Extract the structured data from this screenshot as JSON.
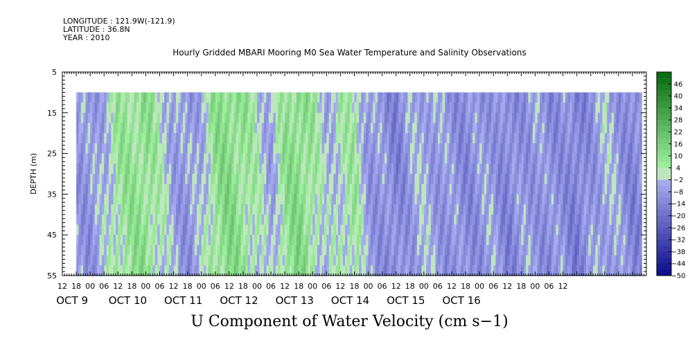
{
  "header": {
    "longitude": "LONGITUDE : 121.9W(-121.9)",
    "latitude": "LATITUDE : 36.8N",
    "year": "YEAR : 2010"
  },
  "chart_data": {
    "type": "heatmap",
    "title": "Hourly Gridded MBARI Mooring M0 Sea Water Temperature and Salinity Observations",
    "subtitle": "U Component of Water Velocity (cm s−1)",
    "ylabel": "DEPTH (m)",
    "y_reversed": true,
    "ylim": [
      5,
      55
    ],
    "y_ticks": [
      5,
      15,
      25,
      35,
      45,
      55
    ],
    "data_depth_range": [
      10,
      55
    ],
    "x_hour_range": [
      12,
      264
    ],
    "x_data_start_hour": 18,
    "x_hour_ticks": [
      "12",
      "18",
      "00",
      "06",
      "12",
      "18",
      "00",
      "06",
      "12",
      "18",
      "00",
      "06",
      "12",
      "18",
      "00",
      "06",
      "12",
      "18",
      "00",
      "06",
      "12",
      "18",
      "00",
      "06",
      "12",
      "18",
      "00",
      "06",
      "12",
      "18",
      "00",
      "06",
      "12",
      "18",
      "00",
      "06",
      "12"
    ],
    "date_labels": [
      {
        "text": "OCT  9",
        "hour": 24
      },
      {
        "text": "OCT 10",
        "hour": 48
      },
      {
        "text": "OCT 11",
        "hour": 72
      },
      {
        "text": "OCT 12",
        "hour": 96
      },
      {
        "text": "OCT 13",
        "hour": 120
      },
      {
        "text": "OCT 14",
        "hour": 144
      },
      {
        "text": "OCT 15",
        "hour": 168
      },
      {
        "text": "OCT 16",
        "hour": 192
      }
    ],
    "colorbar": {
      "labels": [
        "46",
        "40",
        "34",
        "28",
        "22",
        "16",
        "10",
        "4",
        "−2",
        "−8",
        "−14",
        "−20",
        "−26",
        "−32",
        "−38",
        "−44",
        "−50"
      ],
      "range": [
        -50,
        52
      ],
      "step": 3
    },
    "column_profile_hours": [
      18,
      24,
      30,
      36,
      42,
      48,
      54,
      60,
      66,
      72,
      78,
      84,
      90,
      96,
      102,
      108,
      114,
      120,
      126,
      132,
      138,
      144,
      150,
      156,
      162,
      168,
      174,
      180,
      186,
      192,
      198,
      204,
      210,
      216,
      222,
      228,
      234,
      240,
      246,
      252,
      258,
      262
    ],
    "column_profile_values": [
      -8,
      -10,
      -4,
      6,
      8,
      10,
      2,
      -6,
      -10,
      -4,
      9,
      12,
      8,
      2,
      -6,
      8,
      12,
      6,
      -4,
      2,
      6,
      -8,
      -10,
      -14,
      -8,
      -4,
      -8,
      -10,
      -12,
      -10,
      -8,
      -14,
      -10,
      -8,
      -12,
      -10,
      -16,
      -10,
      -4,
      -8,
      -14,
      -12
    ]
  }
}
